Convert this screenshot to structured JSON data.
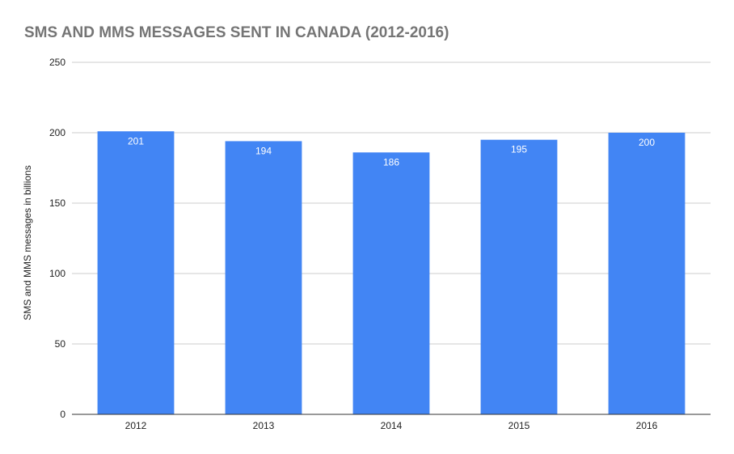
{
  "chart_data": {
    "type": "bar",
    "title": "SMS AND MMS MESSAGES SENT IN CANADA (2012-2016)",
    "xlabel": "",
    "ylabel": "SMS and MMS messages in billions",
    "categories": [
      "2012",
      "2013",
      "2014",
      "2015",
      "2016"
    ],
    "values": [
      201,
      194,
      186,
      195,
      200
    ],
    "data_labels": [
      "201",
      "194",
      "186",
      "195",
      "200"
    ],
    "ylim": [
      0,
      250
    ],
    "yticks": [
      0,
      50,
      100,
      150,
      200,
      250
    ],
    "ytick_labels": [
      "0",
      "50",
      "100",
      "150",
      "200",
      "250"
    ],
    "grid": true,
    "legend": "none",
    "colors": {
      "bar": "#4285f4",
      "grid": "#cccccc",
      "axis": "#333333",
      "title": "#757575",
      "tick_label": "#222222",
      "data_label": "#ffffff"
    }
  }
}
